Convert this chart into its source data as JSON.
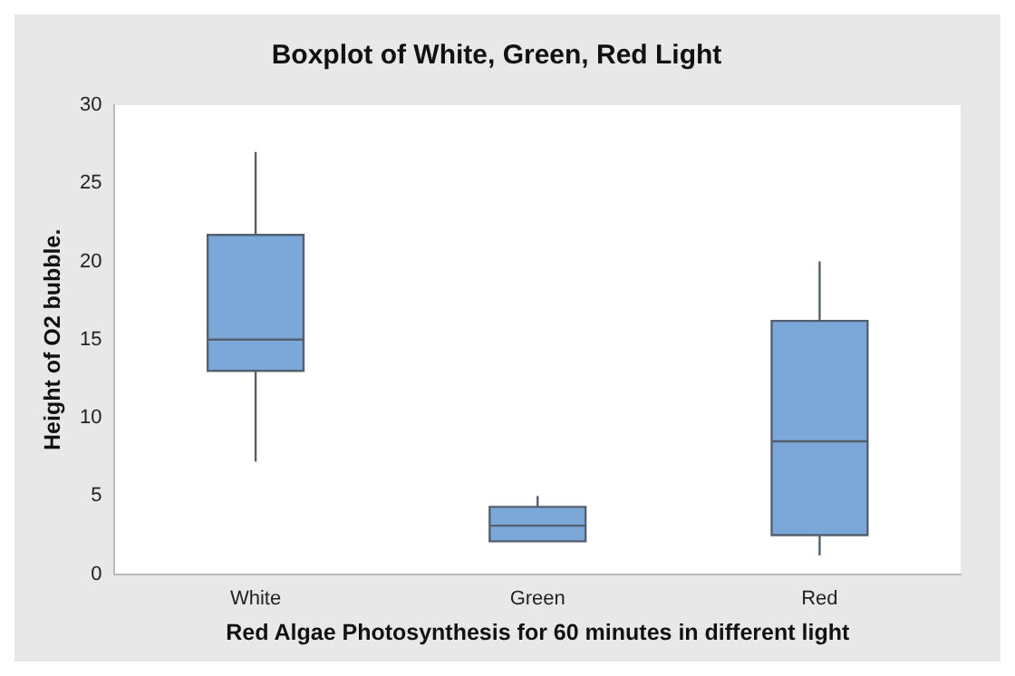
{
  "chart_data": {
    "type": "box",
    "title": "Boxplot of White, Green, Red Light",
    "xlabel": "Red Algae Photosynthesis for 60 minutes in different light",
    "ylabel": "Height of O2 bubble.",
    "categories": [
      "White",
      "Green",
      "Red"
    ],
    "color": "#7ba7d9",
    "ylim": [
      0,
      30
    ],
    "yticks": [
      0,
      5,
      10,
      15,
      20,
      25,
      30
    ],
    "grid": false,
    "legend": false,
    "boxes": [
      {
        "low": 7.2,
        "q1": 13,
        "median": 15,
        "q3": 21.7,
        "high": 27
      },
      {
        "low": 2.1,
        "q1": 2.1,
        "median": 3.1,
        "q3": 4.3,
        "high": 5
      },
      {
        "low": 1.2,
        "q1": 2.5,
        "median": 8.5,
        "q3": 16.2,
        "high": 20
      }
    ]
  }
}
